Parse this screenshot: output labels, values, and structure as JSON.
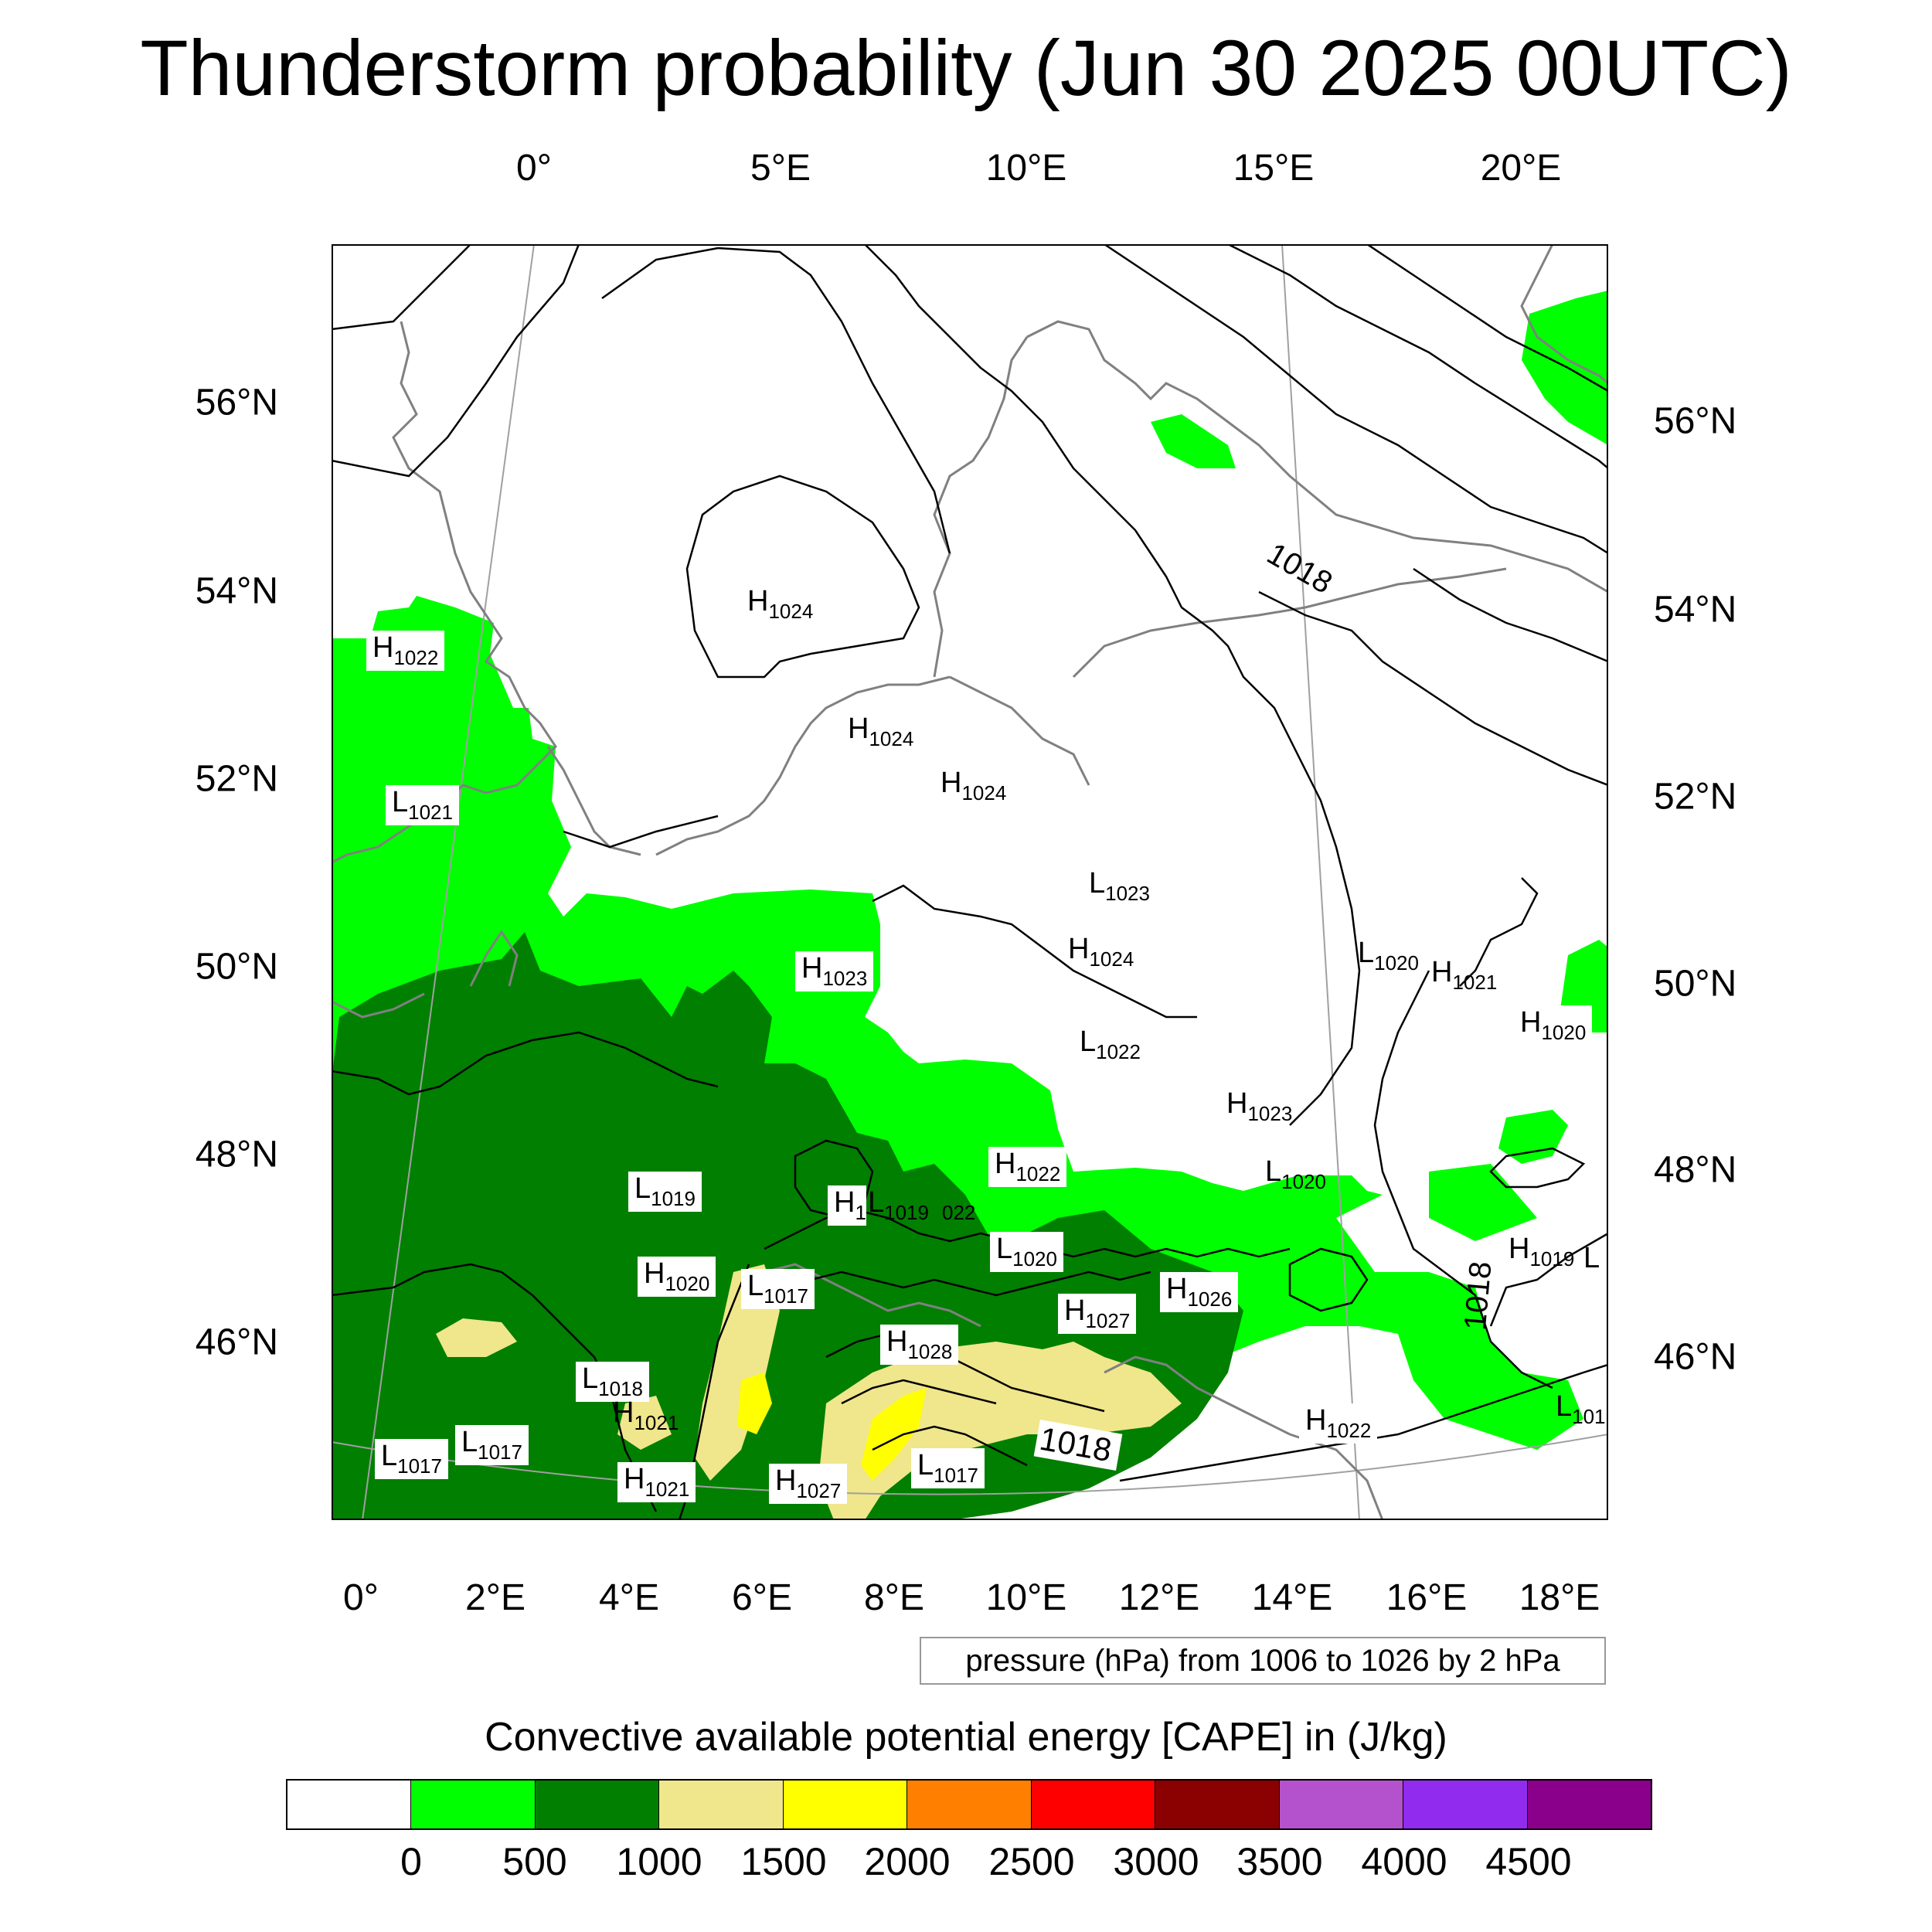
{
  "title": "Thunderstorm probability (Jun 30 2025 00UTC)",
  "top_lon_labels": [
    "0°",
    "5°E",
    "10°E",
    "15°E",
    "20°E"
  ],
  "bottom_lon_labels": [
    "0°",
    "2°E",
    "4°E",
    "6°E",
    "8°E",
    "10°E",
    "12°E",
    "14°E",
    "16°E",
    "18°E"
  ],
  "left_lat_labels": [
    "56°N",
    "54°N",
    "52°N",
    "50°N",
    "48°N",
    "46°N"
  ],
  "right_lat_labels": [
    "56°N",
    "54°N",
    "52°N",
    "50°N",
    "48°N",
    "46°N"
  ],
  "pressure_note": "pressure (hPa) from 1006 to 1026 by 2 hPa",
  "colorbar": {
    "title": "Convective available potential energy [CAPE] in (J/kg)",
    "colors": [
      "#ffffff",
      "#00ff00",
      "#007f00",
      "#f0e68c",
      "#ffff00",
      "#ff7f00",
      "#ff0000",
      "#8b0000",
      "#b452cd",
      "#912cee",
      "#8b008b"
    ],
    "ticks": [
      "0",
      "500",
      "1000",
      "1500",
      "2000",
      "2500",
      "3000",
      "3500",
      "4000",
      "4500"
    ]
  },
  "colors": {
    "cape_0_500": "#00ff00",
    "cape_500_1000": "#007f00",
    "cape_1000_1500": "#f0e68c",
    "cape_1500_2000": "#ffff00",
    "isobar": "#000000",
    "coastline": "#808080"
  },
  "pressure_labels": [
    {
      "type": "H",
      "value": "1022"
    },
    {
      "type": "L",
      "value": "1021"
    },
    {
      "type": "H",
      "value": "1024"
    },
    {
      "type": "H",
      "value": "1024"
    },
    {
      "type": "H",
      "value": "1024"
    },
    {
      "type": "L",
      "value": "1023"
    },
    {
      "type": "H",
      "value": "1024"
    },
    {
      "type": "H",
      "value": "1023"
    },
    {
      "type": "L",
      "value": "1022"
    },
    {
      "type": "H",
      "value": "1023"
    },
    {
      "type": "L",
      "value": "1020"
    },
    {
      "type": "H",
      "value": "1021"
    },
    {
      "type": "H",
      "value": "1020"
    },
    {
      "type": "H",
      "value": "1022"
    },
    {
      "type": "L",
      "value": "1020"
    },
    {
      "type": "L",
      "value": "1019"
    },
    {
      "type": "H",
      "value": "1"
    },
    {
      "type": "L",
      "value": "1019"
    },
    {
      "type": "",
      "value": "022"
    },
    {
      "type": "L",
      "value": "1020"
    },
    {
      "type": "H",
      "value": "1019"
    },
    {
      "type": "L",
      "value": ""
    },
    {
      "type": "H",
      "value": "1020"
    },
    {
      "type": "L",
      "value": "1017"
    },
    {
      "type": "H",
      "value": "1026"
    },
    {
      "type": "H",
      "value": "1027"
    },
    {
      "type": "H",
      "value": "1028"
    },
    {
      "type": "L",
      "value": "1018"
    },
    {
      "type": "H",
      "value": "1021"
    },
    {
      "type": "L",
      "value": "1017"
    },
    {
      "type": "L",
      "value": "1017"
    },
    {
      "type": "H",
      "value": "1021"
    },
    {
      "type": "H",
      "value": "1027"
    },
    {
      "type": "L",
      "value": "1017"
    },
    {
      "type": "H",
      "value": "1022"
    },
    {
      "type": "L",
      "value": "101"
    }
  ],
  "isobar_labels": [
    "1018",
    "1018",
    "1018"
  ]
}
